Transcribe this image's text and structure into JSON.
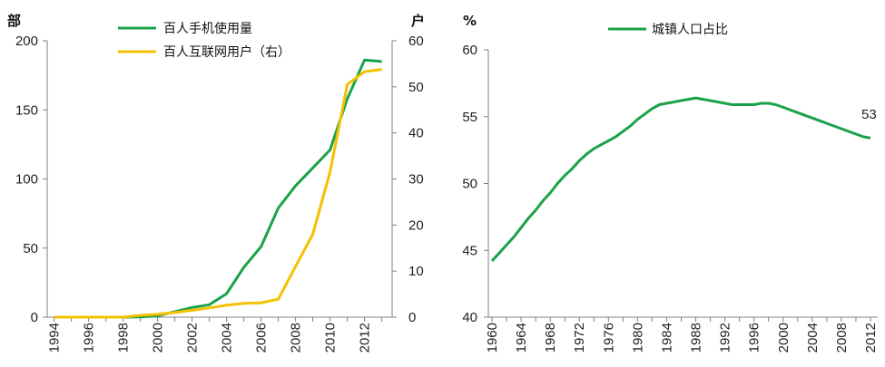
{
  "chart_data": [
    {
      "type": "line",
      "units": {
        "left": "部",
        "right": "户"
      },
      "x": [
        1994,
        1995,
        1996,
        1997,
        1998,
        1999,
        2000,
        2001,
        2002,
        2003,
        2004,
        2005,
        2006,
        2007,
        2008,
        2009,
        2010,
        2011,
        2012,
        2013
      ],
      "x_tick_labels": [
        "1994",
        "1996",
        "1998",
        "2000",
        "2002",
        "2004",
        "2006",
        "2008",
        "2010",
        "2012"
      ],
      "ylim_left": [
        0,
        200
      ],
      "ylim_right": [
        0,
        60
      ],
      "y_ticks_left": [
        "0",
        "50",
        "100",
        "150",
        "200"
      ],
      "y_ticks_right": [
        "0",
        "10",
        "20",
        "30",
        "40",
        "50",
        "60"
      ],
      "grid": false,
      "legend_position": "top-center",
      "series": [
        {
          "name": "百人手机使用量",
          "axis": "left",
          "color": "#1aa24a",
          "values": [
            0.0,
            0.0,
            0.0,
            0.0,
            0.0,
            0.1,
            1.0,
            4.0,
            7.0,
            9.0,
            17.0,
            36.0,
            51.0,
            79.0,
            95.0,
            108.0,
            121.0,
            158.0,
            186.0,
            185.0
          ]
        },
        {
          "name": "百人互联网用户（右）",
          "axis": "right",
          "color": "#f5c000",
          "values": [
            0.0,
            0.0,
            0.0,
            0.0,
            0.0,
            0.4,
            0.6,
            1.0,
            1.5,
            2.0,
            2.6,
            3.0,
            3.1,
            3.9,
            11.0,
            18.0,
            31.5,
            50.5,
            53.3,
            53.8
          ]
        }
      ]
    },
    {
      "type": "line",
      "units": {
        "left": "%"
      },
      "x": [
        1960,
        1961,
        1962,
        1963,
        1964,
        1965,
        1966,
        1967,
        1968,
        1969,
        1970,
        1971,
        1972,
        1973,
        1974,
        1975,
        1976,
        1977,
        1978,
        1979,
        1980,
        1981,
        1982,
        1983,
        1984,
        1985,
        1986,
        1987,
        1988,
        1989,
        1990,
        1991,
        1992,
        1993,
        1994,
        1995,
        1996,
        1997,
        1998,
        1999,
        2000,
        2001,
        2002,
        2003,
        2004,
        2005,
        2006,
        2007,
        2008,
        2009,
        2010,
        2011,
        2012
      ],
      "x_tick_labels": [
        "1960",
        "1964",
        "1968",
        "1972",
        "1976",
        "1980",
        "1984",
        "1988",
        "1992",
        "1996",
        "2000",
        "2004",
        "2008",
        "2012"
      ],
      "ylim": [
        40,
        60
      ],
      "y_ticks": [
        "40",
        "45",
        "50",
        "55",
        "60"
      ],
      "grid": false,
      "legend_position": "top-center",
      "annotation": "53",
      "series": [
        {
          "name": "城镇人口占比",
          "color": "#1aa24a",
          "values": [
            44.2,
            44.8,
            45.4,
            46.0,
            46.7,
            47.4,
            48.0,
            48.7,
            49.3,
            50.0,
            50.6,
            51.1,
            51.7,
            52.2,
            52.6,
            52.9,
            53.2,
            53.5,
            53.9,
            54.3,
            54.8,
            55.2,
            55.6,
            55.9,
            56.0,
            56.1,
            56.2,
            56.3,
            56.4,
            56.3,
            56.2,
            56.1,
            56.0,
            55.9,
            55.9,
            55.9,
            55.9,
            56.0,
            56.0,
            55.9,
            55.7,
            55.5,
            55.3,
            55.1,
            54.9,
            54.7,
            54.5,
            54.3,
            54.1,
            53.9,
            53.7,
            53.5,
            53.4
          ]
        }
      ]
    }
  ]
}
